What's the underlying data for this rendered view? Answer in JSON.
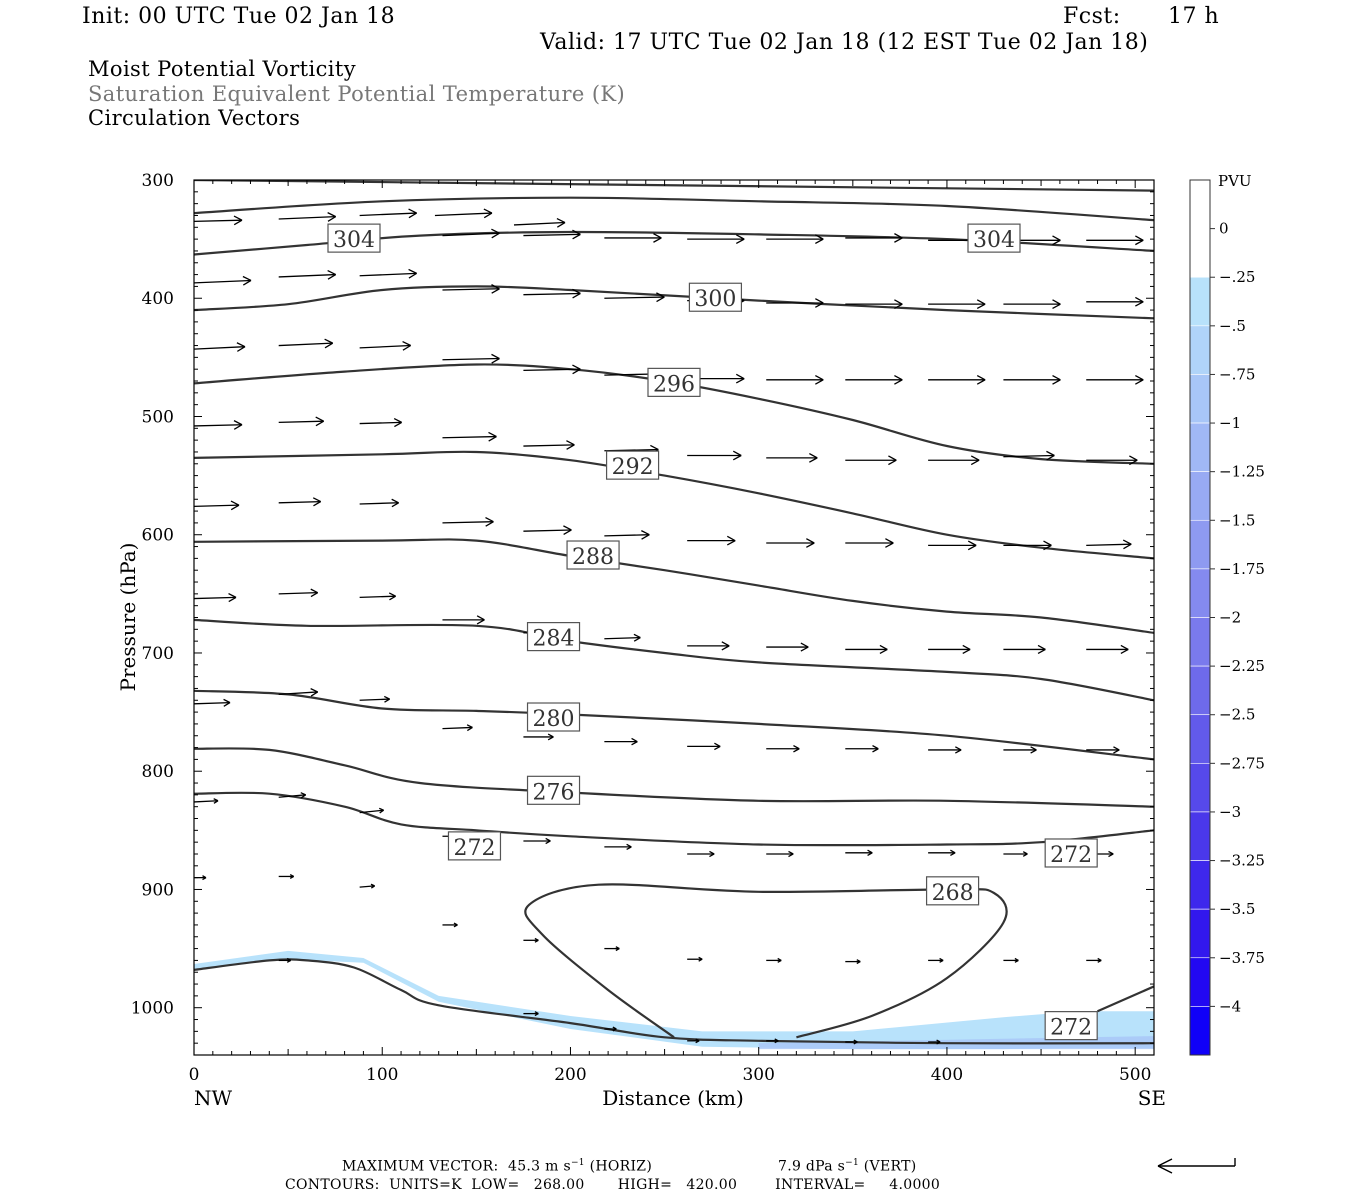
{
  "header": {
    "init": "Init: 00 UTC Tue 02 Jan 18",
    "fcst_label": "Fcst:",
    "fcst_value": "17 h",
    "valid": "Valid: 17 UTC Tue 02 Jan 18 (12 EST Tue 02 Jan 18)",
    "lines": [
      "Moist Potential Vorticity",
      "Saturation Equivalent Potential Temperature (K)",
      "Circulation Vectors"
    ]
  },
  "footer": {
    "max_vector_label": "MAXIMUM VECTOR:",
    "max_horiz": "45.3 m s",
    "horiz_unit": "(HORIZ)",
    "max_vert": "7.9 dPa s",
    "vert_unit": "(VERT)",
    "exp": "−1",
    "contours": "CONTOURS:  UNITS=K  LOW=   268.00       HIGH=   420.00        INTERVAL=     4.0000"
  },
  "chart_data": {
    "type": "cross-section",
    "xlabel": "Distance (km)",
    "ylabel": "Pressure (hPa)",
    "xlim": [
      0,
      510
    ],
    "ylim": [
      1040,
      300
    ],
    "xticks": [
      0,
      100,
      200,
      300,
      400,
      500
    ],
    "yticks": [
      300,
      400,
      500,
      600,
      700,
      800,
      900,
      1000
    ],
    "x_endpoints": {
      "left": "NW",
      "right": "SE"
    },
    "colorbar": {
      "unit": "PVU",
      "labels": [
        "0",
        "−.25",
        "−.5",
        "−.75",
        "−1",
        "−1.25",
        "−1.5",
        "−1.75",
        "−2",
        "−2.25",
        "−2.5",
        "−2.75",
        "−3",
        "−3.25",
        "−3.5",
        "−3.75",
        "−4"
      ],
      "colors": [
        "#ffffff",
        "#b8e2fb",
        "#b0d4f9",
        "#a8c6f7",
        "#a0b8f5",
        "#98aaf3",
        "#8e9af1",
        "#848aef",
        "#7a7aed",
        "#6e6aeb",
        "#625aea",
        "#5649ea",
        "#4a38ea",
        "#3e28ec",
        "#3218ee",
        "#2208f2",
        "#1000f8"
      ]
    },
    "contours": [
      {
        "label": "",
        "points": [
          [
            0,
            300
          ],
          [
            510,
            309
          ]
        ]
      },
      {
        "label": "304",
        "label_at": [
          85,
          350
        ],
        "points": [
          [
            0,
            328
          ],
          [
            100,
            318
          ],
          [
            200,
            315
          ],
          [
            300,
            318
          ],
          [
            400,
            322
          ],
          [
            510,
            334
          ]
        ]
      },
      {
        "label": "304",
        "label_at": [
          425,
          350
        ],
        "points": [
          [
            0,
            363
          ],
          [
            60,
            355
          ],
          [
            120,
            347
          ],
          [
            200,
            344
          ],
          [
            300,
            346
          ],
          [
            400,
            350
          ],
          [
            510,
            360
          ]
        ]
      },
      {
        "label": "300",
        "label_at": [
          277,
          400
        ],
        "points": [
          [
            0,
            410
          ],
          [
            50,
            405
          ],
          [
            100,
            393
          ],
          [
            150,
            390
          ],
          [
            200,
            393
          ],
          [
            300,
            402
          ],
          [
            400,
            410
          ],
          [
            510,
            417
          ]
        ]
      },
      {
        "label": "296",
        "label_at": [
          255,
          472
        ],
        "points": [
          [
            0,
            472
          ],
          [
            80,
            462
          ],
          [
            150,
            456
          ],
          [
            200,
            460
          ],
          [
            250,
            470
          ],
          [
            300,
            485
          ],
          [
            350,
            503
          ],
          [
            400,
            525
          ],
          [
            450,
            536
          ],
          [
            510,
            540
          ]
        ]
      },
      {
        "label": "292",
        "label_at": [
          233,
          542
        ],
        "points": [
          [
            0,
            535
          ],
          [
            100,
            532
          ],
          [
            150,
            530
          ],
          [
            200,
            537
          ],
          [
            250,
            550
          ],
          [
            300,
            565
          ],
          [
            350,
            582
          ],
          [
            400,
            600
          ],
          [
            450,
            611
          ],
          [
            510,
            620
          ]
        ]
      },
      {
        "label": "288",
        "label_at": [
          212,
          618
        ],
        "points": [
          [
            0,
            606
          ],
          [
            100,
            605
          ],
          [
            150,
            605
          ],
          [
            200,
            618
          ],
          [
            250,
            630
          ],
          [
            300,
            643
          ],
          [
            350,
            656
          ],
          [
            400,
            665
          ],
          [
            450,
            670
          ],
          [
            510,
            683
          ]
        ]
      },
      {
        "label": "284",
        "label_at": [
          191,
          687
        ],
        "points": [
          [
            0,
            672
          ],
          [
            60,
            677
          ],
          [
            150,
            677
          ],
          [
            200,
            690
          ],
          [
            250,
            700
          ],
          [
            300,
            708
          ],
          [
            400,
            716
          ],
          [
            450,
            722
          ],
          [
            510,
            740
          ]
        ]
      },
      {
        "label": "280",
        "label_at": [
          191,
          755
        ],
        "points": [
          [
            0,
            732
          ],
          [
            50,
            735
          ],
          [
            100,
            747
          ],
          [
            150,
            749
          ],
          [
            200,
            752
          ],
          [
            300,
            760
          ],
          [
            400,
            770
          ],
          [
            510,
            790
          ]
        ]
      },
      {
        "label": "276",
        "label_at": [
          191,
          817
        ],
        "points": [
          [
            0,
            781
          ],
          [
            40,
            782
          ],
          [
            80,
            795
          ],
          [
            120,
            810
          ],
          [
            200,
            818
          ],
          [
            300,
            825
          ],
          [
            400,
            825
          ],
          [
            510,
            830
          ]
        ]
      },
      {
        "label": "272",
        "label_at": [
          149,
          864
        ],
        "points": [
          [
            0,
            819
          ],
          [
            40,
            819
          ],
          [
            80,
            830
          ],
          [
            110,
            845
          ],
          [
            150,
            850
          ],
          [
            200,
            855
          ],
          [
            300,
            862
          ],
          [
            400,
            862
          ],
          [
            450,
            860
          ],
          [
            510,
            850
          ]
        ]
      },
      {
        "label": "272",
        "label_at": [
          466,
          870
        ],
        "points": []
      },
      {
        "label": "268",
        "label_at": [
          403,
          902
        ],
        "points": [
          [
            255,
            1025
          ],
          [
            220,
            985
          ],
          [
            185,
            938
          ],
          [
            178,
            913
          ],
          [
            215,
            896
          ],
          [
            300,
            902
          ],
          [
            400,
            900
          ],
          [
            425,
            903
          ],
          [
            430,
            928
          ],
          [
            400,
            975
          ],
          [
            360,
            1007
          ],
          [
            320,
            1025
          ]
        ]
      },
      {
        "label": "272",
        "label_at": [
          466,
          1016
        ],
        "points": [
          [
            480,
            1003
          ],
          [
            510,
            982
          ]
        ]
      },
      {
        "label": "",
        "points": [
          [
            0,
            968
          ],
          [
            40,
            960
          ],
          [
            60,
            960
          ],
          [
            85,
            966
          ],
          [
            110,
            985
          ],
          [
            130,
            998
          ],
          [
            200,
            1013
          ],
          [
            250,
            1025
          ],
          [
            300,
            1028
          ],
          [
            400,
            1030
          ],
          [
            510,
            1030
          ]
        ]
      }
    ],
    "pv_shading": {
      "level": "−.25",
      "upper": [
        [
          0,
          963
        ],
        [
          50,
          952
        ],
        [
          90,
          958
        ],
        [
          130,
          990
        ],
        [
          200,
          1007
        ],
        [
          270,
          1020
        ],
        [
          350,
          1020
        ],
        [
          430,
          1008
        ],
        [
          470,
          1003
        ],
        [
          510,
          1003
        ]
      ],
      "lower": [
        [
          0,
          967
        ],
        [
          50,
          959
        ],
        [
          90,
          962
        ],
        [
          130,
          995
        ],
        [
          200,
          1018
        ],
        [
          270,
          1033
        ],
        [
          350,
          1035
        ],
        [
          430,
          1035
        ],
        [
          470,
          1034
        ],
        [
          510,
          1034
        ]
      ]
    },
    "vectors": [
      [
        0,
        335,
        16,
        -1
      ],
      [
        45,
        333,
        19,
        -2
      ],
      [
        88,
        330,
        19,
        -2
      ],
      [
        128,
        330,
        19,
        -2
      ],
      [
        170,
        338,
        17,
        -2
      ],
      [
        0,
        387,
        19,
        -2
      ],
      [
        45,
        382,
        19,
        -2
      ],
      [
        88,
        381,
        19,
        -2
      ],
      [
        0,
        443,
        17,
        -2
      ],
      [
        45,
        440,
        18,
        -2
      ],
      [
        88,
        442,
        17,
        -2
      ],
      [
        0,
        508,
        16,
        -1
      ],
      [
        45,
        505,
        15,
        -1
      ],
      [
        88,
        506,
        14,
        -1
      ],
      [
        0,
        576,
        15,
        -1
      ],
      [
        45,
        573,
        14,
        -1
      ],
      [
        88,
        574,
        13,
        -1
      ],
      [
        0,
        654,
        14,
        -1
      ],
      [
        45,
        650,
        13,
        -1
      ],
      [
        88,
        653,
        12,
        -1
      ],
      [
        0,
        743,
        12,
        -1
      ],
      [
        45,
        735,
        13,
        -2
      ],
      [
        88,
        740,
        10,
        -1
      ],
      [
        0,
        826,
        8,
        -1
      ],
      [
        45,
        822,
        9,
        -2
      ],
      [
        88,
        835,
        8,
        -2
      ],
      [
        0,
        890,
        4,
        0
      ],
      [
        45,
        889,
        5,
        0
      ],
      [
        88,
        898,
        5,
        -1
      ],
      [
        132,
        347,
        19,
        -2
      ],
      [
        175,
        347,
        19,
        -1
      ],
      [
        218,
        349,
        19,
        0
      ],
      [
        262,
        350,
        19,
        0
      ],
      [
        304,
        350,
        19,
        0
      ],
      [
        346,
        349,
        19,
        0
      ],
      [
        390,
        351,
        19,
        0
      ],
      [
        430,
        351,
        19,
        0
      ],
      [
        474,
        351,
        19,
        0
      ],
      [
        132,
        393,
        19,
        -1
      ],
      [
        175,
        397,
        19,
        -1
      ],
      [
        218,
        400,
        20,
        -1
      ],
      [
        262,
        402,
        19,
        0
      ],
      [
        304,
        404,
        19,
        0
      ],
      [
        346,
        405,
        19,
        0
      ],
      [
        390,
        405,
        19,
        0
      ],
      [
        430,
        405,
        19,
        0
      ],
      [
        474,
        403,
        19,
        0
      ],
      [
        132,
        452,
        19,
        -1
      ],
      [
        175,
        461,
        19,
        -1
      ],
      [
        218,
        465,
        19,
        -1
      ],
      [
        262,
        468,
        19,
        0
      ],
      [
        304,
        469,
        19,
        0
      ],
      [
        346,
        469,
        19,
        0
      ],
      [
        390,
        469,
        19,
        0
      ],
      [
        430,
        469,
        19,
        0
      ],
      [
        474,
        469,
        19,
        0
      ],
      [
        132,
        518,
        18,
        -1
      ],
      [
        175,
        525,
        17,
        -1
      ],
      [
        218,
        529,
        18,
        -1
      ],
      [
        262,
        533,
        18,
        0
      ],
      [
        304,
        535,
        17,
        0
      ],
      [
        346,
        537,
        17,
        0
      ],
      [
        390,
        537,
        17,
        0
      ],
      [
        430,
        534,
        17,
        -1
      ],
      [
        474,
        537,
        17,
        0
      ],
      [
        132,
        590,
        17,
        -1
      ],
      [
        175,
        597,
        16,
        -1
      ],
      [
        218,
        601,
        15,
        -1
      ],
      [
        262,
        605,
        16,
        0
      ],
      [
        304,
        607,
        16,
        0
      ],
      [
        346,
        607,
        16,
        0
      ],
      [
        390,
        609,
        16,
        0
      ],
      [
        430,
        609,
        16,
        0
      ],
      [
        474,
        609,
        15,
        -1
      ],
      [
        132,
        672,
        14,
        0
      ],
      [
        175,
        683,
        13,
        -1
      ],
      [
        218,
        688,
        12,
        -1
      ],
      [
        262,
        694,
        14,
        0
      ],
      [
        304,
        695,
        14,
        0
      ],
      [
        346,
        697,
        14,
        0
      ],
      [
        390,
        697,
        14,
        0
      ],
      [
        430,
        697,
        14,
        0
      ],
      [
        474,
        697,
        14,
        0
      ],
      [
        132,
        764,
        10,
        -1
      ],
      [
        175,
        771,
        10,
        0
      ],
      [
        218,
        775,
        11,
        0
      ],
      [
        262,
        779,
        11,
        0
      ],
      [
        304,
        781,
        11,
        0
      ],
      [
        346,
        781,
        11,
        0
      ],
      [
        390,
        782,
        11,
        0
      ],
      [
        430,
        782,
        11,
        0
      ],
      [
        474,
        782,
        11,
        0
      ],
      [
        132,
        855,
        9,
        0
      ],
      [
        175,
        859,
        9,
        0
      ],
      [
        218,
        864,
        9,
        0
      ],
      [
        262,
        870,
        9,
        0
      ],
      [
        304,
        870,
        9,
        0
      ],
      [
        346,
        869,
        9,
        0
      ],
      [
        390,
        869,
        9,
        0
      ],
      [
        430,
        870,
        8,
        0
      ],
      [
        474,
        870,
        9,
        0
      ],
      [
        132,
        930,
        5,
        0
      ],
      [
        175,
        943,
        5,
        0
      ],
      [
        218,
        950,
        5,
        0
      ],
      [
        262,
        959,
        5,
        0
      ],
      [
        304,
        960,
        5,
        0
      ],
      [
        346,
        961,
        5,
        0
      ],
      [
        390,
        960,
        5,
        0
      ],
      [
        430,
        960,
        5,
        0
      ],
      [
        474,
        960,
        5,
        0
      ],
      [
        45,
        960,
        4,
        0
      ],
      [
        175,
        1005,
        5,
        0
      ],
      [
        218,
        1018,
        4,
        0
      ],
      [
        262,
        1028,
        4,
        0
      ],
      [
        304,
        1028,
        4,
        0
      ],
      [
        346,
        1029,
        4,
        0
      ],
      [
        390,
        1029,
        4,
        0
      ]
    ]
  }
}
